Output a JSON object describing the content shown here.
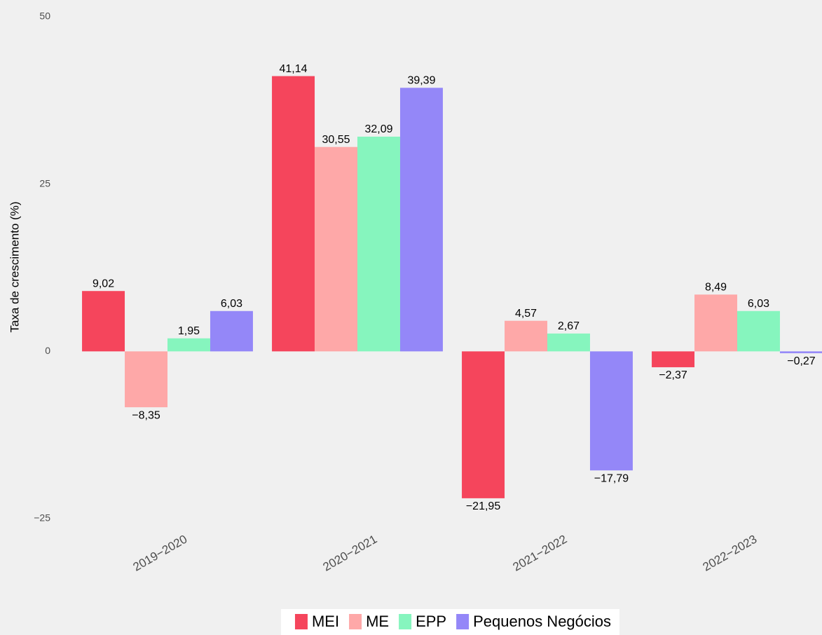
{
  "chart_data": {
    "type": "bar",
    "y_label": "Taxa de crescimento (%)",
    "categories": [
      "2019−2020",
      "2020−2021",
      "2021−2022",
      "2022−2023"
    ],
    "series": [
      {
        "name": "MEI",
        "color": "#f5455c",
        "values": [
          9.02,
          41.14,
          -21.95,
          -2.37
        ],
        "value_labels": [
          "9,02",
          "41,14",
          "−21,95",
          "−2,37"
        ]
      },
      {
        "name": "ME",
        "color": "#fea8a8",
        "values": [
          -8.35,
          30.55,
          4.57,
          8.49
        ],
        "value_labels": [
          "−8,35",
          "30,55",
          "4,57",
          "8,49"
        ]
      },
      {
        "name": "EPP",
        "color": "#86f5be",
        "values": [
          1.95,
          32.09,
          2.67,
          6.03
        ],
        "value_labels": [
          "1,95",
          "32,09",
          "2,67",
          "6,03"
        ]
      },
      {
        "name": "Pequenos Negócios",
        "color": "#9487f8",
        "values": [
          6.03,
          39.39,
          -17.79,
          -0.27
        ],
        "value_labels": [
          "6,03",
          "39,39",
          "−17,79",
          "−0,27"
        ]
      }
    ],
    "ylim": [
      -25,
      50
    ],
    "yticks": [
      {
        "value": -25,
        "label": "−25"
      },
      0,
      25,
      50
    ],
    "grid": false,
    "legend": "bottom"
  }
}
